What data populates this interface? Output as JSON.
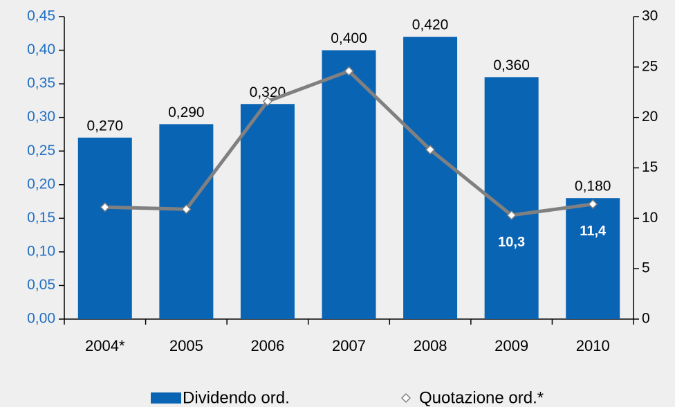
{
  "chart_data": {
    "type": "bar",
    "categories": [
      "2004*",
      "2005",
      "2006",
      "2007",
      "2008",
      "2009",
      "2010"
    ],
    "series": [
      {
        "name": "Dividendo ord.",
        "type": "bar",
        "color": "#0a64b4",
        "values": [
          0.27,
          0.29,
          0.32,
          0.4,
          0.42,
          0.36,
          0.18
        ],
        "value_labels": [
          "0,270",
          "0,290",
          "0,320",
          "0,400",
          "0,420",
          "0,360",
          "0,180"
        ]
      },
      {
        "name": "Quotazione ord.*",
        "type": "line",
        "axis": "y2",
        "color": "#808080",
        "values": [
          11.1,
          10.9,
          21.6,
          24.6,
          16.8,
          10.3,
          11.4
        ],
        "value_labels": [
          null,
          null,
          null,
          null,
          null,
          "10,3",
          "11,4"
        ]
      }
    ],
    "ylim": [
      0,
      0.45
    ],
    "yticks": [
      {
        "value": 0,
        "label": "0,00"
      },
      {
        "value": 0.05,
        "label": "0,05"
      },
      {
        "value": 0.1,
        "label": "0,10"
      },
      {
        "value": 0.15,
        "label": "0,15"
      },
      {
        "value": 0.2,
        "label": "0,20"
      },
      {
        "value": 0.25,
        "label": "0,25"
      },
      {
        "value": 0.3,
        "label": "0,30"
      },
      {
        "value": 0.35,
        "label": "0,35"
      },
      {
        "value": 0.4,
        "label": "0,40"
      },
      {
        "value": 0.45,
        "label": "0,45"
      }
    ],
    "y2lim": [
      0,
      30
    ],
    "y2ticks": [
      0,
      5,
      10,
      15,
      20,
      25,
      30
    ],
    "grid": false,
    "legend": "bottom"
  }
}
